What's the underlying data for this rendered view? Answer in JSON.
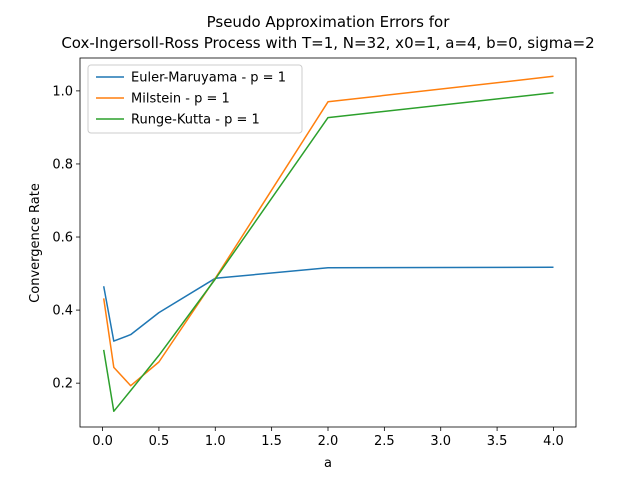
{
  "title_line1": "Pseudo Approximation Errors for",
  "title_line2": "Cox-Ingersoll-Ross Process with T=1, N=32, x0=1, a=4, b=0, sigma=2",
  "chart_data": {
    "type": "line",
    "title": "Pseudo Approximation Errors for\nCox-Ingersoll-Ross Process with T=1, N=32, x0=1, a=4, b=0, sigma=2",
    "xlabel": "a",
    "ylabel": "Convergence Rate",
    "xlim": [
      -0.2,
      4.2
    ],
    "ylim": [
      0.08,
      1.09
    ],
    "xticks": [
      0.0,
      0.5,
      1.0,
      1.5,
      2.0,
      2.5,
      3.0,
      3.5,
      4.0
    ],
    "xtick_labels": [
      "0.0",
      "0.5",
      "1.0",
      "1.5",
      "2.0",
      "2.5",
      "3.0",
      "3.5",
      "4.0"
    ],
    "yticks": [
      0.2,
      0.4,
      0.6,
      0.8,
      1.0
    ],
    "ytick_labels": [
      "0.2",
      "0.4",
      "0.6",
      "0.8",
      "1.0"
    ],
    "grid": false,
    "legend_position": "upper-left",
    "x": [
      0.01,
      0.1,
      0.25,
      0.5,
      1.0,
      2.0,
      4.0
    ],
    "series": [
      {
        "name": "Euler-Maruyama - p = 1",
        "color": "#1f77b4",
        "values": [
          0.465,
          0.315,
          0.333,
          0.393,
          0.487,
          0.516,
          0.517
        ]
      },
      {
        "name": "Milstein - p = 1",
        "color": "#ff7f0e",
        "values": [
          0.432,
          0.243,
          0.193,
          0.258,
          0.487,
          0.97,
          1.04
        ]
      },
      {
        "name": "Runge-Kutta - p = 1",
        "color": "#2ca02c",
        "values": [
          0.291,
          0.123,
          0.18,
          0.276,
          0.485,
          0.927,
          0.995
        ]
      }
    ]
  }
}
